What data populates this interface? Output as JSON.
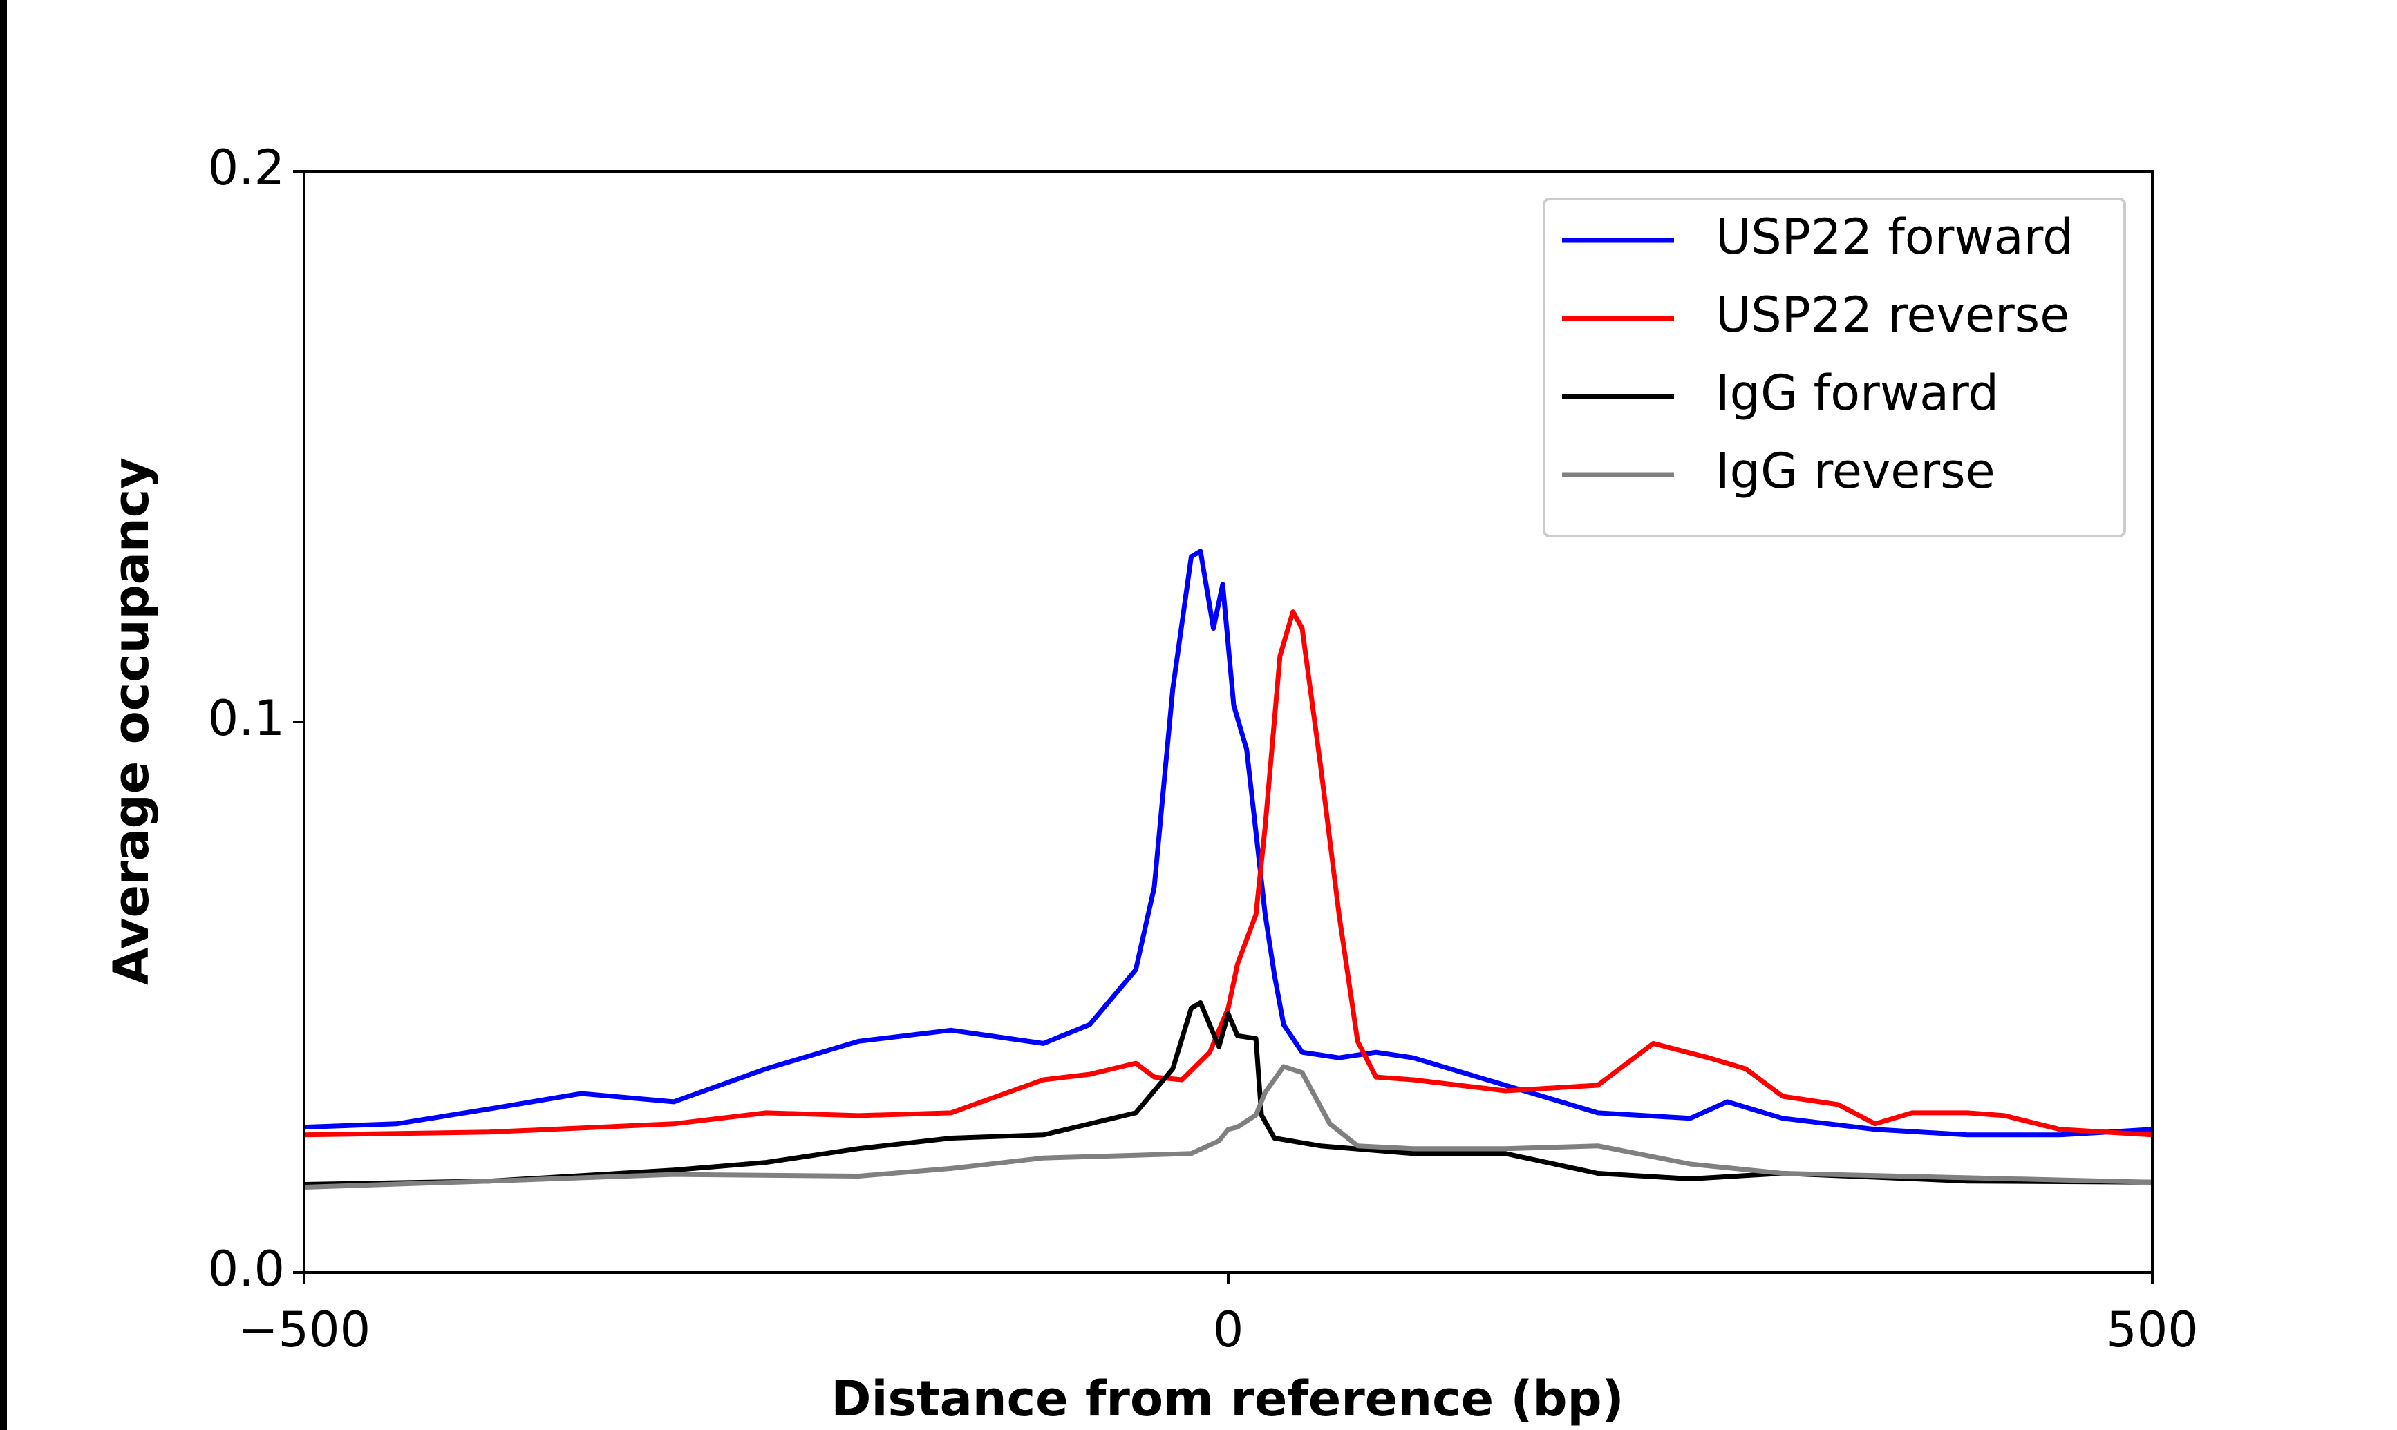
{
  "chart_data": {
    "type": "line",
    "xlabel": "Distance from reference (bp)",
    "ylabel": "Average occupancy",
    "xlim": [
      -500,
      500
    ],
    "ylim": [
      0,
      0.2
    ],
    "xticks": [
      {
        "value": -500,
        "label": "−500"
      },
      0,
      500
    ],
    "yticks": [
      {
        "value": 0,
        "label": "0.0"
      },
      0.1,
      0.2
    ],
    "legend": "upper right",
    "series": [
      {
        "name": "USP22 forward",
        "color": "#0000ff",
        "x": [
          -500,
          -450,
          -400,
          -350,
          -300,
          -250,
          -200,
          -150,
          -100,
          -75,
          -50,
          -40,
          -30,
          -20,
          -15,
          -8,
          -3,
          3,
          10,
          20,
          25,
          30,
          40,
          60,
          80,
          100,
          150,
          200,
          250,
          270,
          300,
          350,
          400,
          450,
          500
        ],
        "values": [
          0.0264,
          0.027,
          0.0297,
          0.0325,
          0.031,
          0.037,
          0.042,
          0.044,
          0.0416,
          0.045,
          0.055,
          0.07,
          0.106,
          0.13,
          0.131,
          0.117,
          0.125,
          0.103,
          0.095,
          0.065,
          0.054,
          0.045,
          0.04,
          0.039,
          0.04,
          0.039,
          0.034,
          0.029,
          0.028,
          0.031,
          0.028,
          0.026,
          0.025,
          0.025,
          0.026
        ]
      },
      {
        "name": "USP22 reverse",
        "color": "#ff0000",
        "x": [
          -500,
          -400,
          -300,
          -250,
          -200,
          -150,
          -100,
          -75,
          -50,
          -40,
          -25,
          -10,
          0,
          5,
          15,
          20,
          28,
          35,
          40,
          50,
          60,
          70,
          80,
          100,
          150,
          200,
          230,
          260,
          280,
          300,
          330,
          350,
          370,
          400,
          420,
          450,
          500
        ],
        "values": [
          0.025,
          0.0255,
          0.027,
          0.029,
          0.0285,
          0.029,
          0.035,
          0.036,
          0.038,
          0.0355,
          0.035,
          0.04,
          0.048,
          0.056,
          0.065,
          0.081,
          0.112,
          0.12,
          0.117,
          0.092,
          0.065,
          0.042,
          0.0355,
          0.035,
          0.033,
          0.034,
          0.0416,
          0.039,
          0.037,
          0.032,
          0.0305,
          0.027,
          0.029,
          0.029,
          0.0285,
          0.026,
          0.025
        ]
      },
      {
        "name": "IgG forward",
        "color": "#000000",
        "x": [
          -500,
          -400,
          -300,
          -250,
          -200,
          -150,
          -100,
          -50,
          -30,
          -20,
          -15,
          -5,
          0,
          5,
          15,
          18,
          25,
          50,
          100,
          150,
          200,
          250,
          300,
          400,
          500
        ],
        "values": [
          0.016,
          0.0166,
          0.0186,
          0.02,
          0.0225,
          0.0244,
          0.025,
          0.029,
          0.037,
          0.048,
          0.049,
          0.041,
          0.047,
          0.043,
          0.0425,
          0.0286,
          0.0244,
          0.023,
          0.0216,
          0.0216,
          0.018,
          0.017,
          0.018,
          0.0166,
          0.0164
        ]
      },
      {
        "name": "IgG reverse",
        "color": "#808080",
        "x": [
          -500,
          -400,
          -300,
          -200,
          -150,
          -100,
          -50,
          -20,
          -5,
          0,
          5,
          15,
          20,
          30,
          40,
          55,
          70,
          100,
          150,
          200,
          250,
          300,
          400,
          500
        ],
        "values": [
          0.0155,
          0.0166,
          0.0178,
          0.0175,
          0.0189,
          0.0208,
          0.0213,
          0.0216,
          0.0239,
          0.026,
          0.0264,
          0.0286,
          0.0327,
          0.0374,
          0.0363,
          0.027,
          0.023,
          0.0225,
          0.0225,
          0.023,
          0.0197,
          0.018,
          0.0172,
          0.0164
        ]
      }
    ]
  }
}
